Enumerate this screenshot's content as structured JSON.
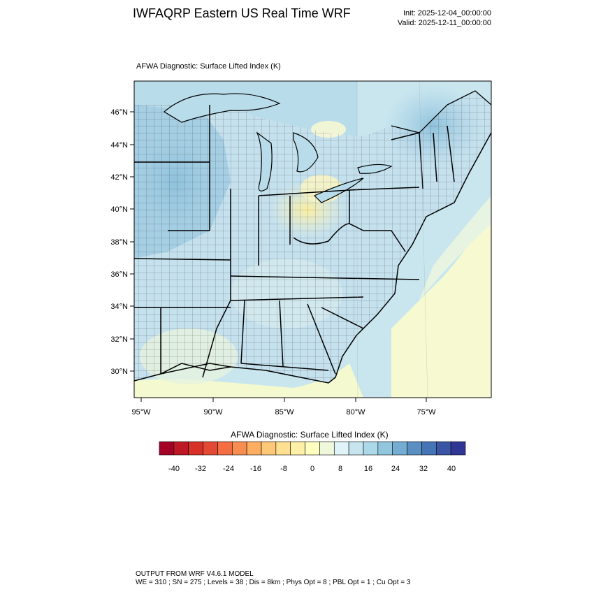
{
  "header": {
    "title": "IWFAQRP Eastern US Real Time WRF",
    "init": "Init: 2025-12-04_00:00:00",
    "valid": "Valid: 2025-12-11_00:00:00"
  },
  "map": {
    "subtitle": "AFWA Diagnostic: Surface Lifted Index   (K)",
    "lat_labels": [
      "46°N",
      "44°N",
      "42°N",
      "40°N",
      "38°N",
      "36°N",
      "34°N",
      "32°N",
      "30°N"
    ],
    "lon_labels": [
      "95°W",
      "90°W",
      "85°W",
      "80°W",
      "75°W"
    ],
    "colors": {
      "lake": "#b9dcea",
      "ocean_north": "#c9e6ef",
      "gulf": "#f4f9cf",
      "atlantic_south": "#f7fad0",
      "midwest": "#a6cfe4",
      "southeast": "#c5e1ee",
      "warm_ohio": "#fbf3b5"
    }
  },
  "colorbar": {
    "title": "AFWA Diagnostic: Surface Lifted Index  (K)",
    "tick_labels": [
      "-40",
      "-32",
      "-24",
      "-16",
      "-8",
      "0",
      "8",
      "16",
      "24",
      "32",
      "40"
    ],
    "colors": [
      "#a50026",
      "#be1827",
      "#d73027",
      "#e34a33",
      "#f46d43",
      "#f88d52",
      "#fdae61",
      "#fdc877",
      "#fee090",
      "#fef0a7",
      "#ffffbf",
      "#f0f8dc",
      "#e0f3f8",
      "#c6e5ef",
      "#abd9e9",
      "#92c5de",
      "#74add1",
      "#5a8fc2",
      "#4575b4",
      "#3a55a3",
      "#313695"
    ]
  },
  "footer": {
    "line1": "OUTPUT FROM WRF V4.6.1 MODEL",
    "line2": "WE = 310 ; SN = 275 ; Levels = 38 ; Dis = 8km ; Phys Opt = 8 ; PBL Opt = 1 ; Cu Opt = 3"
  }
}
